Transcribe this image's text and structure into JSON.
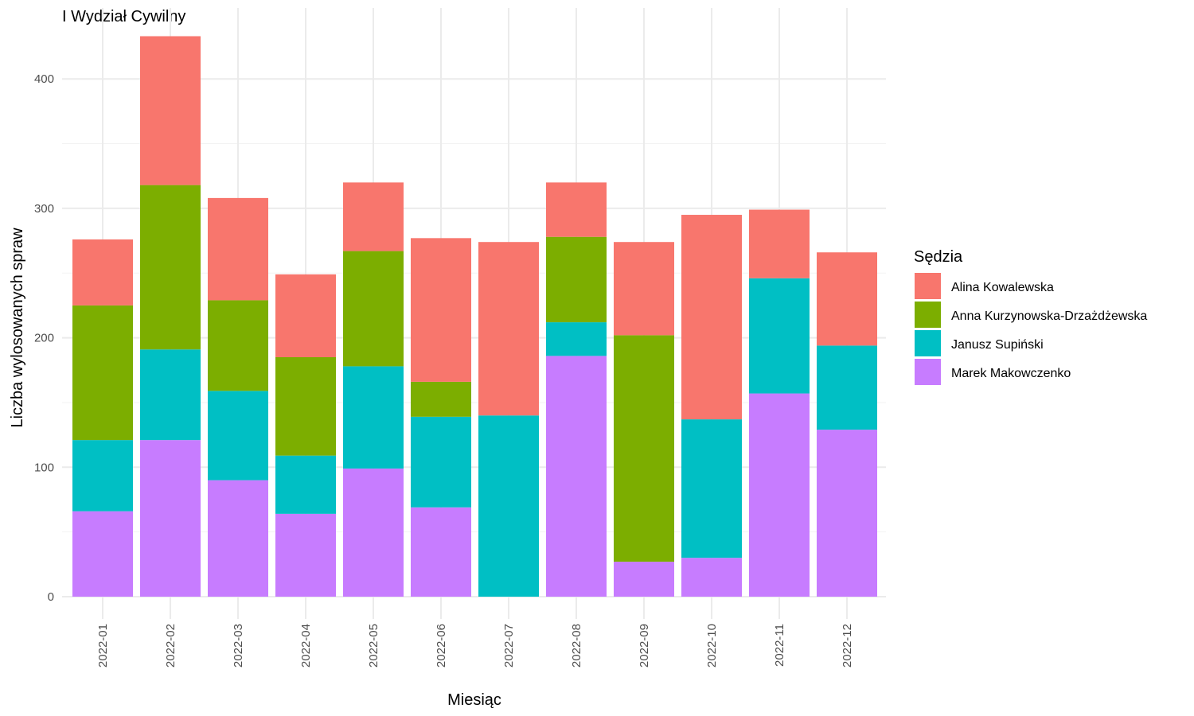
{
  "chart_data": {
    "type": "bar",
    "stacked": true,
    "title": "I Wydział Cywilny",
    "xlabel": "Miesiąc",
    "ylabel": "Liczba wylosowanych spraw",
    "ylim": [
      0,
      440
    ],
    "y_ticks": [
      0,
      100,
      200,
      300,
      400
    ],
    "grid": true,
    "legend_title": "Sędzia",
    "legend_position": "right",
    "categories": [
      "2022-01",
      "2022-02",
      "2022-03",
      "2022-04",
      "2022-05",
      "2022-06",
      "2022-07",
      "2022-08",
      "2022-09",
      "2022-10",
      "2022-11",
      "2022-12"
    ],
    "series": [
      {
        "name": "Alina Kowalewska",
        "color": "#F8766D",
        "values": [
          51,
          115,
          79,
          64,
          53,
          111,
          134,
          42,
          72,
          158,
          53,
          72
        ]
      },
      {
        "name": "Anna Kurzynowska-Drzażdżewska",
        "color": "#7CAE00",
        "values": [
          104,
          127,
          70,
          76,
          89,
          27,
          0,
          66,
          175,
          0,
          0,
          0
        ]
      },
      {
        "name": "Janusz Supiński",
        "color": "#00BFC4",
        "values": [
          55,
          70,
          69,
          45,
          79,
          70,
          140,
          26,
          0,
          107,
          89,
          65
        ]
      },
      {
        "name": "Marek Makowczenko",
        "color": "#C77CFF",
        "values": [
          66,
          121,
          90,
          64,
          99,
          69,
          0,
          186,
          27,
          30,
          157,
          129
        ]
      }
    ]
  }
}
